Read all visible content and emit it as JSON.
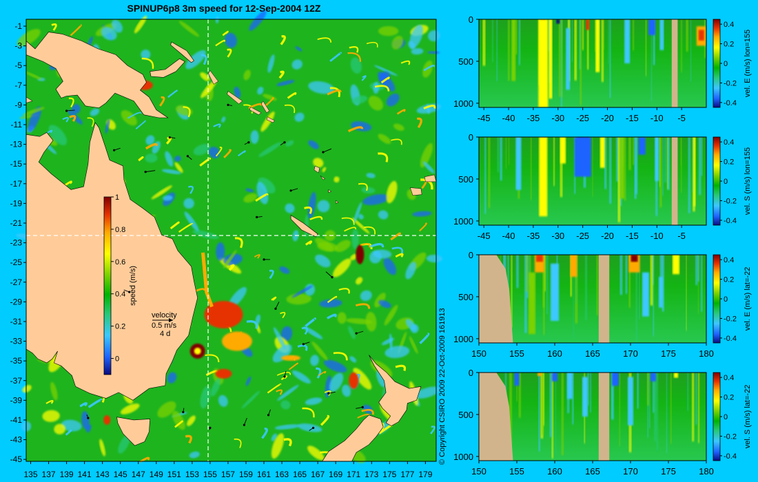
{
  "title": "SPINUP6p8 3m speed for 12-Sep-2004 12Z",
  "copyright": "© Copyright CSIRO 2009   22-Oct-2009 161913",
  "colors": {
    "background": "#00ccff",
    "land": "#ffcc99",
    "section_land": "#d2b48c",
    "colormap": [
      "#0a0a80",
      "#1e64ff",
      "#3cc8ff",
      "#28c878",
      "#00b400",
      "#7ad200",
      "#ffff00",
      "#ffaa00",
      "#e63200",
      "#800000"
    ]
  },
  "map": {
    "x_ticks": [
      "135",
      "137",
      "139",
      "141",
      "143",
      "145",
      "147",
      "149",
      "151",
      "153",
      "155",
      "157",
      "159",
      "161",
      "163",
      "165",
      "167",
      "169",
      "171",
      "173",
      "175",
      "177",
      "179"
    ],
    "y_ticks": [
      "-1",
      "-3",
      "-5",
      "-7",
      "-9",
      "-11",
      "-13",
      "-15",
      "-17",
      "-19",
      "-21",
      "-23",
      "-25",
      "-27",
      "-29",
      "-31",
      "-33",
      "-35",
      "-37",
      "-39",
      "-41",
      "-43",
      "-45"
    ],
    "section_lon": 155,
    "section_lat": -22,
    "colorbar": {
      "label": "speed (m/s)",
      "ticks": [
        "0",
        "0.2",
        "0.4",
        "0.6",
        "0.8",
        "1"
      ]
    },
    "velocity_key": {
      "label": "velocity",
      "speed": "0.5 m/s",
      "duration": "4 d"
    }
  },
  "sections": [
    {
      "label": "vel. E (m/s) lon=155",
      "x_ticks": [
        "-45",
        "-40",
        "-35",
        "-30",
        "-25",
        "-20",
        "-15",
        "-10",
        "-5"
      ],
      "y_ticks": [
        "0",
        "500",
        "1000"
      ],
      "cbar_ticks": [
        "0.4",
        "0.2",
        "0",
        "-0.2",
        "-0.4"
      ]
    },
    {
      "label": "vel. S (m/s) lon=155",
      "x_ticks": [
        "-45",
        "-40",
        "-35",
        "-30",
        "-25",
        "-20",
        "-15",
        "-10",
        "-5"
      ],
      "y_ticks": [
        "0",
        "500",
        "1000"
      ],
      "cbar_ticks": [
        "0.4",
        "0.2",
        "0",
        "-0.2",
        "-0.4"
      ]
    },
    {
      "label": "vel. E (m/s) lat=-22",
      "x_ticks": [
        "150",
        "155",
        "160",
        "165",
        "170",
        "175",
        "180"
      ],
      "y_ticks": [
        "0",
        "500",
        "1000"
      ],
      "cbar_ticks": [
        "0.4",
        "0.2",
        "0",
        "-0.2",
        "-0.4"
      ]
    },
    {
      "label": "vel. S (m/s) lat=-22",
      "x_ticks": [
        "150",
        "155",
        "160",
        "165",
        "170",
        "175",
        "180"
      ],
      "y_ticks": [
        "0",
        "500",
        "1000"
      ],
      "cbar_ticks": [
        "0.4",
        "0.2",
        "0",
        "-0.2",
        "-0.4"
      ]
    }
  ],
  "chart_data": [
    {
      "type": "heatmap",
      "title": "SPINUP6p8 3m speed for 12-Sep-2004 12Z",
      "xlim": [
        135,
        180
      ],
      "ylim": [
        -45,
        0
      ],
      "colorbar_label": "speed (m/s)",
      "colorbar_range": [
        -0.1,
        1
      ],
      "features": {
        "east_australian_current_speed": 0.9,
        "eddy_centres": [
          [
            156.5,
            -30.5
          ],
          [
            153.5,
            -34
          ],
          [
            171.5,
            -24
          ],
          [
            147.5,
            -7
          ]
        ]
      }
    },
    {
      "type": "heatmap",
      "section": "vel. E (m/s) lon=155",
      "xlim": [
        -46,
        0
      ],
      "ylim": [
        1050,
        0
      ],
      "colorbar_range": [
        -0.45,
        0.45
      ]
    },
    {
      "type": "heatmap",
      "section": "vel. S (m/s) lon=155",
      "xlim": [
        -46,
        0
      ],
      "ylim": [
        1050,
        0
      ],
      "colorbar_range": [
        -0.45,
        0.45
      ]
    },
    {
      "type": "heatmap",
      "section": "vel. E (m/s) lat=-22",
      "xlim": [
        150,
        180
      ],
      "ylim": [
        1050,
        0
      ],
      "colorbar_range": [
        -0.45,
        0.45
      ]
    },
    {
      "type": "heatmap",
      "section": "vel. S (m/s) lat=-22",
      "xlim": [
        150,
        180
      ],
      "ylim": [
        1050,
        0
      ],
      "colorbar_range": [
        -0.45,
        0.45
      ]
    }
  ]
}
